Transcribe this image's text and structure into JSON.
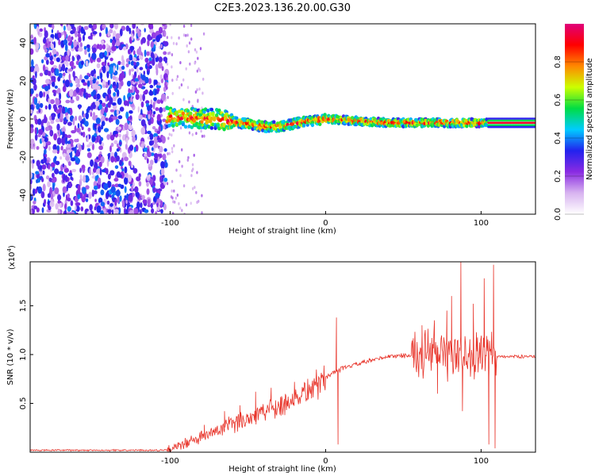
{
  "title": "C2E3.2023.136.20.00.G30",
  "chart_data": [
    {
      "type": "heatmap",
      "xlabel": "Height of straight line (km)",
      "ylabel": "Frequency (Hz)",
      "xlim": [
        -190,
        135
      ],
      "ylim": [
        -50,
        50
      ],
      "x_ticks": [
        -100,
        0,
        100
      ],
      "y_ticks": [
        -40,
        -20,
        0,
        20,
        40
      ],
      "colorbar": {
        "label": "Normalized spectral amplitude",
        "range": [
          0,
          1
        ],
        "ticks": [
          0.0,
          0.2,
          0.4,
          0.6,
          0.8
        ],
        "colors": [
          "#ffffff",
          "#d8b4f0",
          "#8a2be2",
          "#2222ee",
          "#00ccff",
          "#00dd44",
          "#ccff00",
          "#ff8800",
          "#ff0000",
          "#e0007a"
        ]
      },
      "band": {
        "noise_region_x": [
          -190,
          -102
        ],
        "band_start_x": -102,
        "band_center_freq": [
          [
            -102,
            1
          ],
          [
            -70,
            0
          ],
          [
            -40,
            -4
          ],
          [
            -30,
            -4
          ],
          [
            -10,
            -1
          ],
          [
            0,
            0
          ],
          [
            40,
            -2
          ],
          [
            100,
            -2
          ],
          [
            135,
            -2
          ]
        ],
        "strong_line_x": [
          105,
          135
        ]
      }
    },
    {
      "type": "line",
      "xlabel": "Height of straight line (km)",
      "ylabel": "SNR (10 * v/v)",
      "y_multiplier": "(x10",
      "y_multiplier_exp": "4",
      "y_multiplier_close": ")",
      "xlim": [
        -190,
        135
      ],
      "ylim": [
        0,
        1.95
      ],
      "x_ticks": [
        -100,
        0,
        100
      ],
      "y_ticks": [
        0.5,
        1.0,
        1.5
      ],
      "y_tick_labels": [
        "0.5",
        "1.0",
        "1.5"
      ],
      "line_color": "#e8342a",
      "envelope": [
        [
          -190,
          0.02
        ],
        [
          -102,
          0.02
        ],
        [
          -95,
          0.06
        ],
        [
          -80,
          0.15
        ],
        [
          -60,
          0.28
        ],
        [
          -40,
          0.42
        ],
        [
          -20,
          0.55
        ],
        [
          -5,
          0.7
        ],
        [
          5,
          0.82
        ],
        [
          10,
          0.85
        ],
        [
          20,
          0.9
        ],
        [
          40,
          0.98
        ],
        [
          60,
          1.0
        ],
        [
          70,
          1.0
        ],
        [
          110,
          0.98
        ],
        [
          135,
          0.98
        ]
      ],
      "spikes": [
        [
          -95,
          0.1
        ],
        [
          -78,
          0.28
        ],
        [
          -65,
          0.42
        ],
        [
          -55,
          0.48
        ],
        [
          -45,
          0.62
        ],
        [
          -35,
          0.66
        ],
        [
          -20,
          0.72
        ],
        [
          7,
          1.38
        ],
        [
          8,
          0.08
        ],
        [
          62,
          1.3
        ],
        [
          70,
          1.35
        ],
        [
          72,
          0.6
        ],
        [
          78,
          1.45
        ],
        [
          81,
          1.6
        ],
        [
          87,
          1.95
        ],
        [
          88,
          0.42
        ],
        [
          95,
          1.52
        ],
        [
          102,
          1.78
        ],
        [
          105,
          0.08
        ],
        [
          108,
          1.92
        ],
        [
          109,
          0.04
        ]
      ]
    }
  ]
}
